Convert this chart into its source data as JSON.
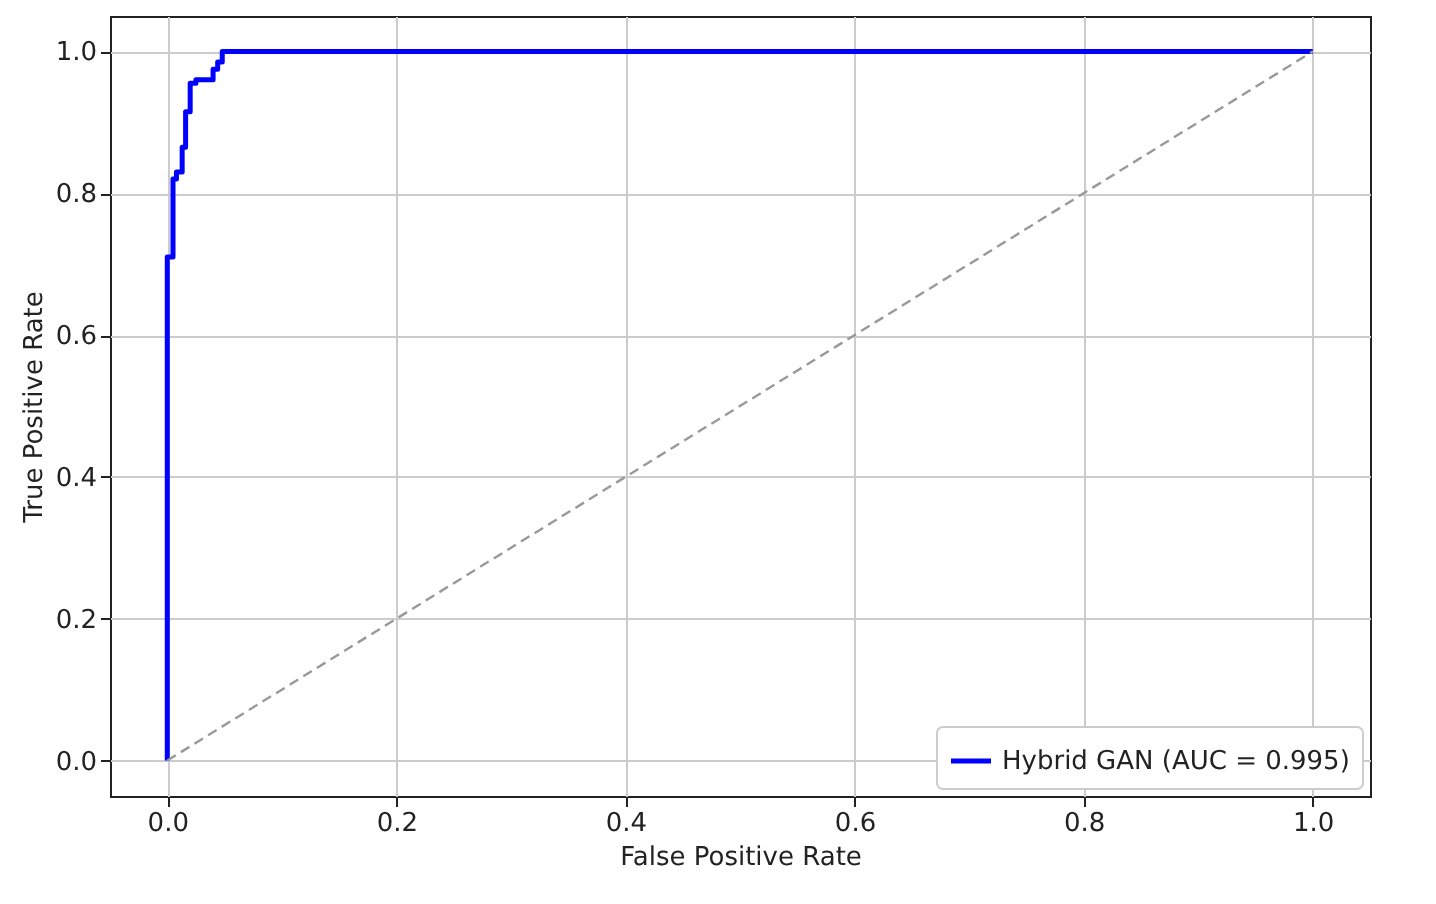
{
  "chart_data": {
    "type": "line",
    "xlabel": "False Positive Rate",
    "ylabel": "True Positive Rate",
    "xlim": [
      -0.05,
      1.05
    ],
    "ylim": [
      -0.05,
      1.05
    ],
    "xticks": [
      {
        "value": 0,
        "label": "0.0"
      },
      {
        "value": 0.2,
        "label": "0.2"
      },
      {
        "value": 0.4,
        "label": "0.4"
      },
      {
        "value": 0.6,
        "label": "0.6"
      },
      {
        "value": 0.8,
        "label": "0.8"
      },
      {
        "value": 1,
        "label": "1.0"
      }
    ],
    "yticks": [
      {
        "value": 0,
        "label": "0.0"
      },
      {
        "value": 0.2,
        "label": "0.2"
      },
      {
        "value": 0.4,
        "label": "0.4"
      },
      {
        "value": 0.6,
        "label": "0.6"
      },
      {
        "value": 0.8,
        "label": "0.8"
      },
      {
        "value": 1,
        "label": "1.0"
      }
    ],
    "grid": true,
    "legend": "bottom right",
    "marker": "none",
    "series": [
      {
        "name": "Hybrid GAN (AUC = 0.995)",
        "color": "#0000ff",
        "line_style": "solid",
        "x": [
          0,
          0,
          0.005,
          0.005,
          0.008,
          0.008,
          0.013,
          0.013,
          0.016,
          0.016,
          0.02,
          0.02,
          0.025,
          0.025,
          0.04,
          0.04,
          0.044,
          0.044,
          0.048,
          0.048,
          1
        ],
        "values": [
          0,
          0.71,
          0.71,
          0.82,
          0.82,
          0.83,
          0.83,
          0.865,
          0.865,
          0.915,
          0.915,
          0.955,
          0.955,
          0.96,
          0.96,
          0.975,
          0.975,
          0.985,
          0.985,
          1,
          1
        ]
      },
      {
        "color": "#999999",
        "line_style": "dashed",
        "x": [
          0,
          1
        ],
        "values": [
          0,
          1
        ]
      }
    ]
  }
}
